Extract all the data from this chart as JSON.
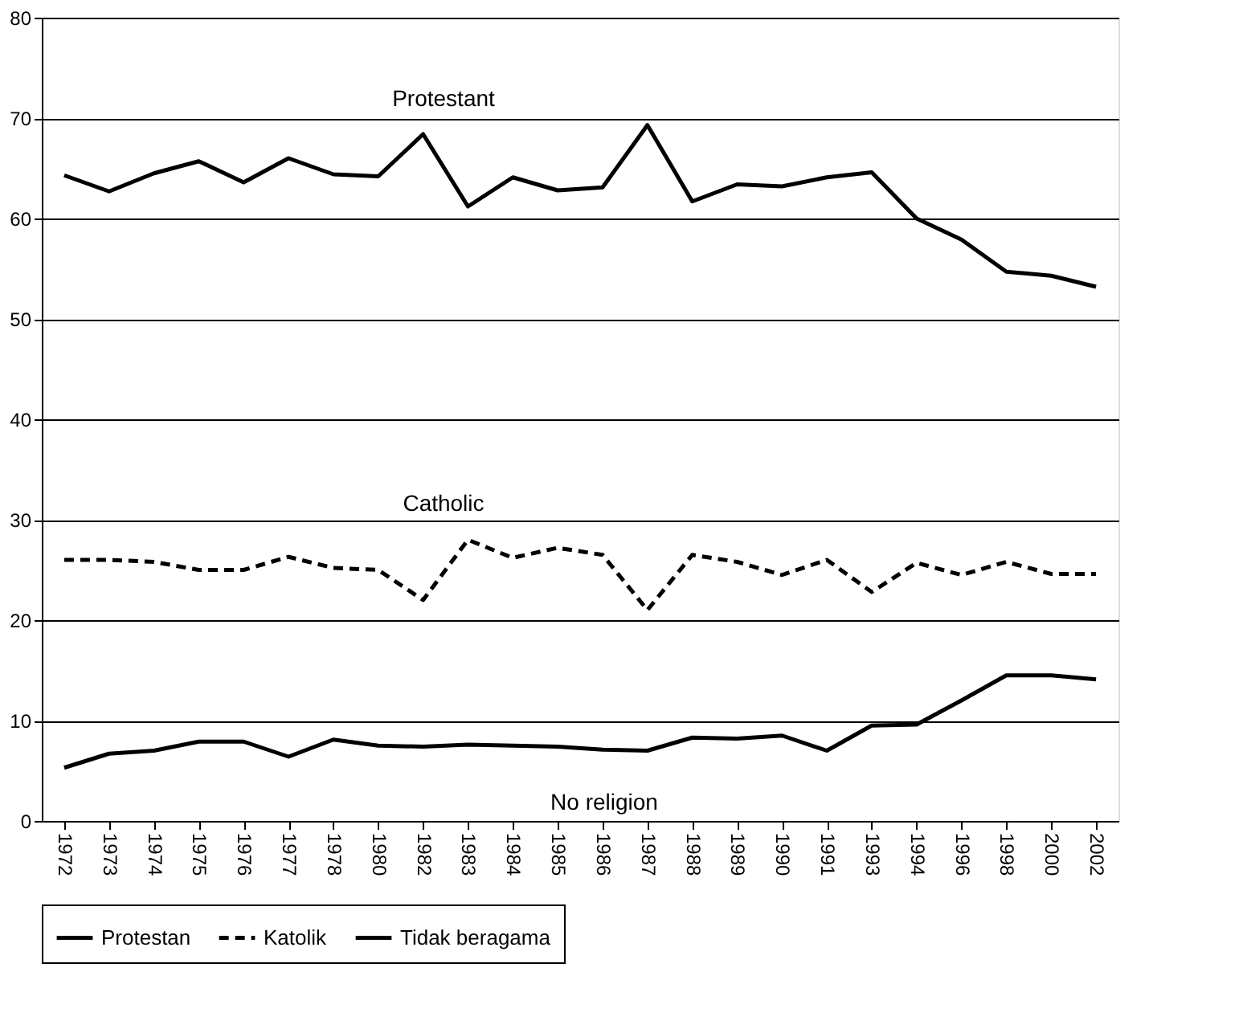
{
  "chart_data": {
    "type": "line",
    "categories": [
      "1972",
      "1973",
      "1974",
      "1975",
      "1976",
      "1977",
      "1978",
      "1980",
      "1982",
      "1983",
      "1984",
      "1985",
      "1986",
      "1987",
      "1988",
      "1989",
      "1990",
      "1991",
      "1993",
      "1994",
      "1996",
      "1998",
      "2000",
      "2002"
    ],
    "series": [
      {
        "name": "Protestan",
        "color": "#000000",
        "line_style": "solid",
        "values": [
          64.3,
          62.7,
          64.5,
          65.7,
          63.6,
          66.0,
          64.4,
          64.2,
          68.4,
          61.2,
          64.1,
          62.8,
          63.1,
          69.3,
          61.7,
          63.4,
          63.2,
          64.1,
          64.6,
          60.0,
          57.9,
          54.7,
          54.3,
          53.2
        ]
      },
      {
        "name": "Katolik",
        "color": "#000000",
        "line_style": "dashed",
        "values": [
          26.0,
          26.0,
          25.8,
          25.0,
          25.0,
          26.3,
          25.2,
          25.0,
          22.0,
          28.0,
          26.2,
          27.2,
          26.5,
          21.0,
          26.5,
          25.8,
          24.5,
          26.0,
          22.8,
          25.7,
          24.5,
          25.8,
          24.6,
          24.6
        ]
      },
      {
        "name": "Tidak beragama",
        "color": "#000000",
        "line_style": "solid",
        "values": [
          5.3,
          6.7,
          7.0,
          7.9,
          7.9,
          6.4,
          8.1,
          7.5,
          7.4,
          7.6,
          7.5,
          7.4,
          7.1,
          7.0,
          8.3,
          8.2,
          8.5,
          7.0,
          9.5,
          9.6,
          12.0,
          14.5,
          14.5,
          14.1
        ]
      }
    ],
    "annotations": [
      "Protestant",
      "Catholic",
      "No religion"
    ],
    "ylim": [
      0,
      80
    ],
    "yticks": [
      0,
      10,
      20,
      30,
      40,
      50,
      60,
      70,
      80
    ],
    "grid": "y",
    "legend": "bottom",
    "marker": "none"
  }
}
